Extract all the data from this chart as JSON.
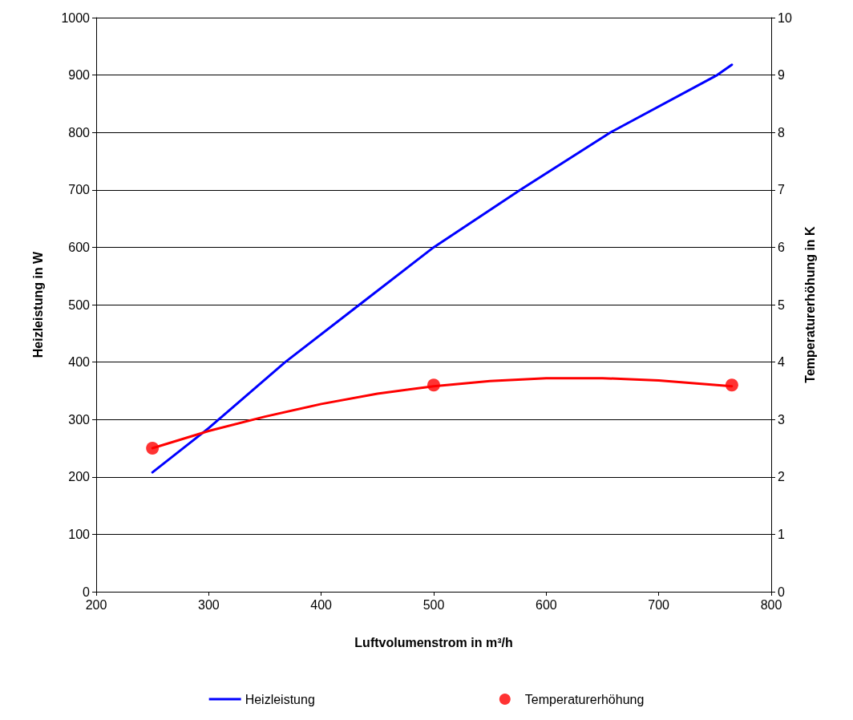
{
  "chart_data": {
    "type": "line",
    "xlabel": "Luftvolumenstrom in m³/h",
    "ylabel": "Heizleistung in W",
    "y2label": "Temperaturerhöhung in K",
    "xlim": [
      200,
      800
    ],
    "xticks": [
      200,
      300,
      400,
      500,
      600,
      700,
      800
    ],
    "ylim": [
      0,
      1000
    ],
    "yticks": [
      0,
      100,
      200,
      300,
      400,
      500,
      600,
      700,
      800,
      900,
      1000
    ],
    "y2lim": [
      0,
      10
    ],
    "y2ticks": [
      0,
      1,
      2,
      3,
      4,
      5,
      6,
      7,
      8,
      9,
      10
    ],
    "grid": "y",
    "legend": "bottom",
    "series": [
      {
        "name": "Heizleistung",
        "type": "line",
        "color": "#0000ff",
        "marker": "none",
        "line_style": "solid",
        "x": [
          250,
          300,
          368,
          434,
          500,
          577,
          657,
          752,
          765
        ],
        "values": [
          208,
          285,
          400,
          500,
          600,
          700,
          800,
          900,
          918
        ]
      },
      {
        "type": "line",
        "axis": "y2",
        "color": "#ff0000",
        "marker": "none",
        "line_style": "solid",
        "x": [
          250,
          300,
          350,
          400,
          450,
          500,
          550,
          600,
          650,
          700,
          765
        ],
        "values": [
          2.5,
          2.8,
          3.05,
          3.27,
          3.45,
          3.58,
          3.67,
          3.72,
          3.72,
          3.68,
          3.58
        ]
      },
      {
        "name": "Temperaturerhöhung",
        "type": "scatter",
        "axis": "y2",
        "color": "#ff0000",
        "marker": "circle",
        "x": [
          250,
          500,
          765
        ],
        "values": [
          2.5,
          3.6,
          3.6
        ]
      }
    ]
  }
}
